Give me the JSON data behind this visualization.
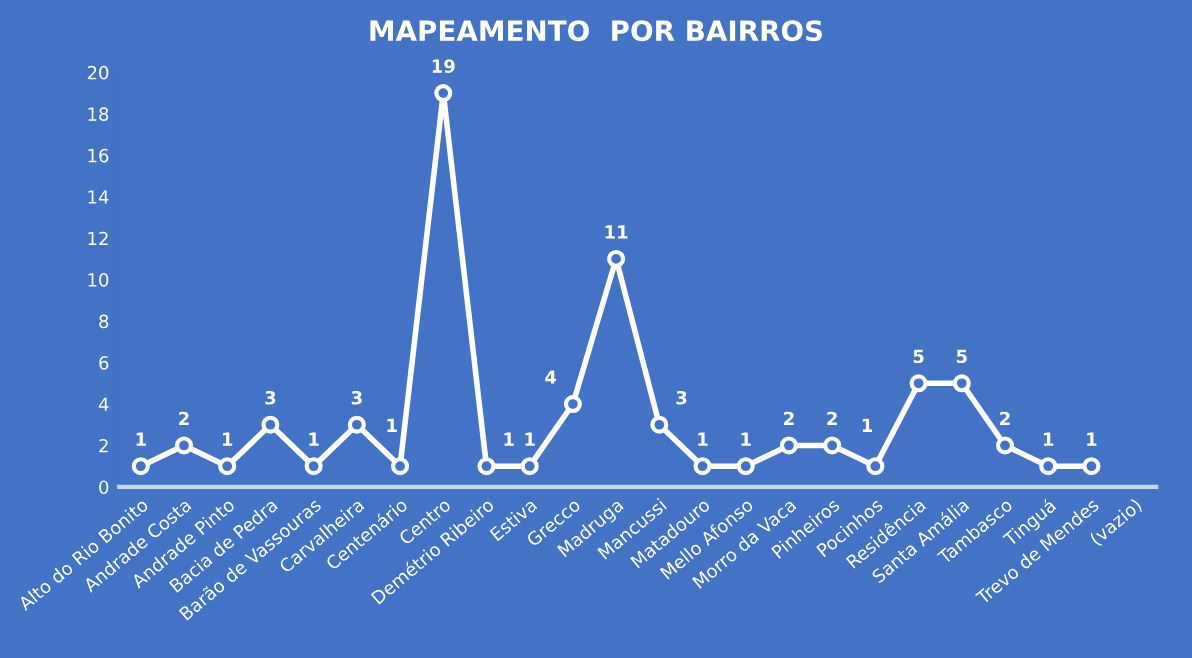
{
  "chart_data": {
    "type": "line",
    "title": "MAPEAMENTO  POR BAIRROS",
    "categories": [
      "Alto do Rio Bonito",
      "Andrade Costa",
      "Andrade Pinto",
      "Bacia de Pedra",
      "Barão de Vassouras",
      "Carvalheira",
      "Centenário",
      "Centro",
      "Demétrio Ribeiro",
      "Estiva",
      "Grecco",
      "Madruga",
      "Mancussi",
      "Matadouro",
      "Mello Afonso",
      "Morro da Vaca",
      "Pinheiros",
      "Pocinhos",
      "Residência",
      "Santa Amália",
      "Tambasco",
      "Tinguá",
      "Trevo de Mendes",
      "(vazio)"
    ],
    "series": [
      {
        "color": "#ffffff",
        "values": [
          1,
          2,
          1,
          3,
          1,
          3,
          1,
          19,
          1,
          1,
          4,
          11,
          3,
          1,
          1,
          2,
          2,
          1,
          5,
          5,
          2,
          1,
          1,
          null
        ]
      }
    ],
    "ylim": [
      0,
      20
    ],
    "yticks": [
      0,
      2,
      4,
      6,
      8,
      10,
      12,
      14,
      16,
      18,
      20
    ],
    "grid": false,
    "marker": "circle",
    "line_style": "solid",
    "data_labels": true
  }
}
